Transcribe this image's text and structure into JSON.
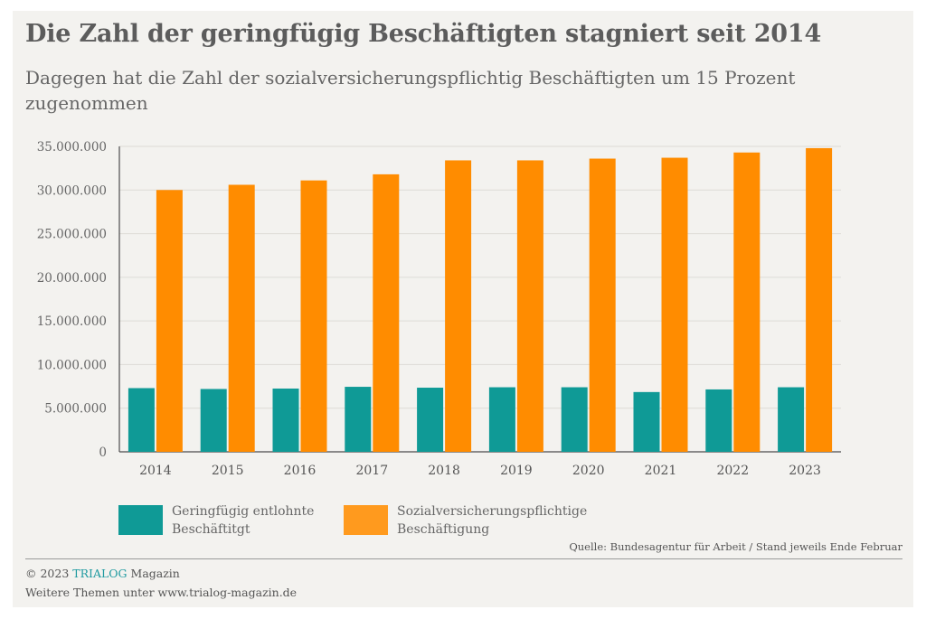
{
  "header": {
    "title": "Die Zahl der geringfügig Beschäftigten stagniert seit 2014",
    "subtitle": "Dagegen hat die Zahl der sozialversicherungspflichtig Beschäftigten um 15 Prozent zugenommen"
  },
  "chart_data": {
    "type": "bar",
    "title": "Die Zahl der geringfügig Beschäftigten stagniert seit 2014",
    "subtitle": "Dagegen hat die Zahl der sozialversicherungspflichtig Beschäftigten um 15 Prozent zugenommen",
    "xlabel": "",
    "ylabel": "",
    "categories": [
      "2014",
      "2015",
      "2016",
      "2017",
      "2018",
      "2019",
      "2020",
      "2021",
      "2022",
      "2023"
    ],
    "series": [
      {
        "name": "Geringfügig entlohnte Beschäftitgt",
        "color": "#0f9a96",
        "values": [
          7300000,
          7200000,
          7250000,
          7450000,
          7350000,
          7400000,
          7400000,
          6850000,
          7150000,
          7400000
        ]
      },
      {
        "name": "Sozialversicherungspflichtige Beschäftigung",
        "color": "#ff8c00",
        "values": [
          30000000,
          30600000,
          31100000,
          31800000,
          33400000,
          33400000,
          33600000,
          33700000,
          34300000,
          34800000
        ]
      }
    ],
    "ylim": [
      0,
      35000000
    ],
    "yticks": [
      0,
      5000000,
      10000000,
      15000000,
      20000000,
      25000000,
      30000000,
      35000000
    ],
    "ytick_labels": [
      "0",
      "5.000.000",
      "10.000.000",
      "15.000.000",
      "20.000.000",
      "25.000.000",
      "30.000.000",
      "35.000.000"
    ],
    "grid": true,
    "legend_position": "bottom-left"
  },
  "legend": {
    "items": [
      {
        "label_line1": "Geringfügig entlohnte",
        "label_line2": "Beschäftitgt",
        "color": "#0f9a96"
      },
      {
        "label_line1": "Sozialversicherungspflichtige",
        "label_line2": "Beschäftigung",
        "color": "#ff8c00"
      }
    ]
  },
  "source": "Quelle: Bundesagentur für Arbeit / Stand jeweils Ende Februar",
  "footer": {
    "copyright_prefix": "© 2023",
    "brand": "TRIALOG",
    "brand_suffix": "Magazin",
    "more": "Weitere Themen unter www.trialog-magazin.de"
  }
}
